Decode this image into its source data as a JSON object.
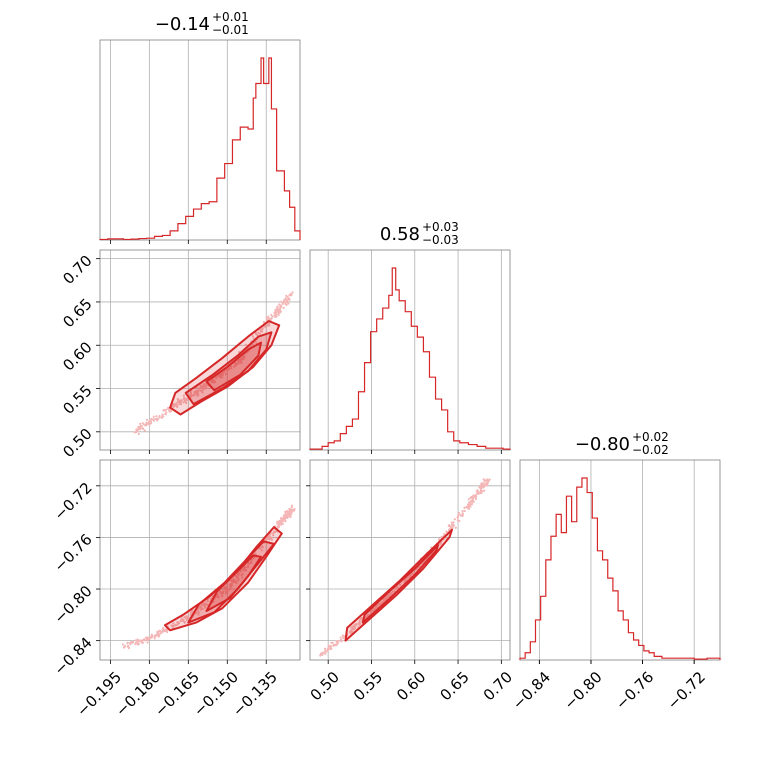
{
  "chart_data": {
    "type": "corner",
    "color": "#d62728",
    "point_color": "#f4b6b6",
    "grid": true,
    "parameters": [
      {
        "title": {
          "value": "−0.14",
          "plus": "+0.01",
          "minus": "−0.01"
        },
        "range": [
          -0.199,
          -0.122
        ],
        "ticks": [
          -0.195,
          -0.18,
          -0.165,
          -0.15,
          -0.135
        ],
        "tick_labels": [
          "−0.195",
          "−0.180",
          "−0.165",
          "−0.150",
          "−0.135"
        ]
      },
      {
        "title": {
          "value": "0.58",
          "plus": "+0.03",
          "minus": "−0.03"
        },
        "range": [
          0.479,
          0.71
        ],
        "ticks": [
          0.5,
          0.55,
          0.6,
          0.65,
          0.7
        ],
        "tick_labels": [
          "0.50",
          "0.55",
          "0.60",
          "0.65",
          "0.70"
        ]
      },
      {
        "title": {
          "value": "−0.80",
          "plus": "+0.02",
          "minus": "−0.02"
        },
        "range": [
          -0.855,
          -0.7
        ],
        "ticks": [
          -0.84,
          -0.8,
          -0.76,
          -0.72
        ],
        "tick_labels": [
          "−0.84",
          "−0.80",
          "−0.76",
          "−0.72"
        ]
      }
    ],
    "histograms": [
      {
        "bins": [
          [
            -0.199,
            -0.196,
            0.003
          ],
          [
            -0.196,
            -0.193,
            0.006
          ],
          [
            -0.193,
            -0.19,
            0.006
          ],
          [
            -0.19,
            -0.187,
            0.003
          ],
          [
            -0.187,
            -0.184,
            0.005
          ],
          [
            -0.184,
            -0.181,
            0.008
          ],
          [
            -0.181,
            -0.178,
            0.01
          ],
          [
            -0.178,
            -0.175,
            0.02
          ],
          [
            -0.175,
            -0.172,
            0.025
          ],
          [
            -0.172,
            -0.169,
            0.05
          ],
          [
            -0.169,
            -0.166,
            0.09
          ],
          [
            -0.166,
            -0.163,
            0.13
          ],
          [
            -0.163,
            -0.16,
            0.17
          ],
          [
            -0.16,
            -0.157,
            0.2
          ],
          [
            -0.157,
            -0.154,
            0.21
          ],
          [
            -0.154,
            -0.151,
            0.34
          ],
          [
            -0.151,
            -0.148,
            0.42
          ],
          [
            -0.148,
            -0.145,
            0.55
          ],
          [
            -0.145,
            -0.142,
            0.62
          ],
          [
            -0.142,
            -0.14,
            0.61
          ],
          [
            -0.14,
            -0.139,
            0.78
          ],
          [
            -0.139,
            -0.137,
            0.86
          ],
          [
            -0.137,
            -0.136,
            1.0
          ],
          [
            -0.136,
            -0.134,
            0.86
          ],
          [
            -0.134,
            -0.133,
            1.0
          ],
          [
            -0.133,
            -0.131,
            0.72
          ],
          [
            -0.131,
            -0.128,
            0.38
          ],
          [
            -0.128,
            -0.126,
            0.27
          ],
          [
            -0.126,
            -0.124,
            0.18
          ],
          [
            -0.124,
            -0.122,
            0.05
          ]
        ]
      },
      {
        "bins": [
          [
            0.479,
            0.486,
            0.005
          ],
          [
            0.486,
            0.493,
            0.005
          ],
          [
            0.493,
            0.5,
            0.02
          ],
          [
            0.5,
            0.507,
            0.04
          ],
          [
            0.507,
            0.514,
            0.05
          ],
          [
            0.514,
            0.521,
            0.09
          ],
          [
            0.521,
            0.528,
            0.13
          ],
          [
            0.528,
            0.535,
            0.17
          ],
          [
            0.535,
            0.542,
            0.32
          ],
          [
            0.542,
            0.549,
            0.48
          ],
          [
            0.549,
            0.556,
            0.65
          ],
          [
            0.556,
            0.563,
            0.72
          ],
          [
            0.563,
            0.57,
            0.78
          ],
          [
            0.57,
            0.574,
            0.85
          ],
          [
            0.574,
            0.578,
            1.0
          ],
          [
            0.578,
            0.582,
            0.88
          ],
          [
            0.582,
            0.589,
            0.82
          ],
          [
            0.589,
            0.596,
            0.76
          ],
          [
            0.596,
            0.603,
            0.68
          ],
          [
            0.603,
            0.61,
            0.62
          ],
          [
            0.61,
            0.617,
            0.54
          ],
          [
            0.617,
            0.624,
            0.4
          ],
          [
            0.624,
            0.631,
            0.28
          ],
          [
            0.631,
            0.638,
            0.22
          ],
          [
            0.638,
            0.645,
            0.1
          ],
          [
            0.645,
            0.652,
            0.05
          ],
          [
            0.652,
            0.662,
            0.04
          ],
          [
            0.662,
            0.672,
            0.03
          ],
          [
            0.672,
            0.682,
            0.02
          ],
          [
            0.682,
            0.692,
            0.01
          ],
          [
            0.692,
            0.702,
            0.01
          ],
          [
            0.702,
            0.71,
            0.005
          ]
        ]
      },
      {
        "bins": [
          [
            -0.855,
            -0.851,
            0.01
          ],
          [
            -0.851,
            -0.847,
            0.04
          ],
          [
            -0.847,
            -0.843,
            0.1
          ],
          [
            -0.843,
            -0.839,
            0.22
          ],
          [
            -0.839,
            -0.835,
            0.35
          ],
          [
            -0.835,
            -0.831,
            0.55
          ],
          [
            -0.831,
            -0.827,
            0.68
          ],
          [
            -0.827,
            -0.823,
            0.8
          ],
          [
            -0.823,
            -0.819,
            0.7
          ],
          [
            -0.819,
            -0.815,
            0.9
          ],
          [
            -0.815,
            -0.811,
            0.76
          ],
          [
            -0.811,
            -0.807,
            0.95
          ],
          [
            -0.807,
            -0.803,
            1.0
          ],
          [
            -0.803,
            -0.799,
            0.92
          ],
          [
            -0.799,
            -0.795,
            0.78
          ],
          [
            -0.795,
            -0.791,
            0.6
          ],
          [
            -0.791,
            -0.787,
            0.55
          ],
          [
            -0.787,
            -0.783,
            0.45
          ],
          [
            -0.783,
            -0.779,
            0.38
          ],
          [
            -0.779,
            -0.775,
            0.27
          ],
          [
            -0.775,
            -0.771,
            0.22
          ],
          [
            -0.771,
            -0.767,
            0.15
          ],
          [
            -0.767,
            -0.763,
            0.11
          ],
          [
            -0.763,
            -0.759,
            0.08
          ],
          [
            -0.759,
            -0.755,
            0.05
          ],
          [
            -0.755,
            -0.751,
            0.04
          ],
          [
            -0.751,
            -0.745,
            0.02
          ],
          [
            -0.745,
            -0.735,
            0.01
          ],
          [
            -0.735,
            -0.72,
            0.01
          ],
          [
            -0.72,
            -0.71,
            0.005
          ],
          [
            -0.71,
            -0.7,
            0.01
          ]
        ]
      }
    ],
    "pairs": [
      {
        "x_param": 0,
        "y_param": 1,
        "curve": [
          [
            -0.185,
            0.5
          ],
          [
            -0.175,
            0.521
          ],
          [
            -0.165,
            0.54
          ],
          [
            -0.155,
            0.56
          ],
          [
            -0.145,
            0.585
          ],
          [
            -0.135,
            0.625
          ],
          [
            -0.125,
            0.66
          ]
        ],
        "contours": [
          [
            [
              -0.168,
              0.52
            ],
            [
              -0.16,
              0.535
            ],
            [
              -0.15,
              0.552
            ],
            [
              -0.14,
              0.575
            ],
            [
              -0.133,
              0.6
            ],
            [
              -0.13,
              0.623
            ],
            [
              -0.134,
              0.628
            ],
            [
              -0.142,
              0.61
            ],
            [
              -0.152,
              0.585
            ],
            [
              -0.162,
              0.562
            ],
            [
              -0.17,
              0.545
            ],
            [
              -0.172,
              0.528
            ]
          ],
          [
            [
              -0.163,
              0.532
            ],
            [
              -0.152,
              0.55
            ],
            [
              -0.142,
              0.57
            ],
            [
              -0.135,
              0.595
            ],
            [
              -0.133,
              0.615
            ],
            [
              -0.138,
              0.61
            ],
            [
              -0.146,
              0.588
            ],
            [
              -0.156,
              0.565
            ],
            [
              -0.166,
              0.545
            ]
          ],
          [
            [
              -0.155,
              0.548
            ],
            [
              -0.145,
              0.566
            ],
            [
              -0.138,
              0.588
            ],
            [
              -0.137,
              0.603
            ],
            [
              -0.142,
              0.595
            ],
            [
              -0.15,
              0.575
            ],
            [
              -0.158,
              0.558
            ]
          ]
        ]
      },
      {
        "x_param": 0,
        "y_param": 2,
        "curve": [
          [
            -0.19,
            -0.845
          ],
          [
            -0.18,
            -0.838
          ],
          [
            -0.17,
            -0.828
          ],
          [
            -0.16,
            -0.815
          ],
          [
            -0.15,
            -0.8
          ],
          [
            -0.14,
            -0.775
          ],
          [
            -0.13,
            -0.75
          ],
          [
            -0.125,
            -0.738
          ]
        ],
        "contours": [
          [
            [
              -0.172,
              -0.832
            ],
            [
              -0.162,
              -0.826
            ],
            [
              -0.152,
              -0.815
            ],
            [
              -0.142,
              -0.795
            ],
            [
              -0.135,
              -0.775
            ],
            [
              -0.129,
              -0.757
            ],
            [
              -0.132,
              -0.752
            ],
            [
              -0.139,
              -0.768
            ],
            [
              -0.147,
              -0.788
            ],
            [
              -0.157,
              -0.806
            ],
            [
              -0.167,
              -0.82
            ],
            [
              -0.174,
              -0.828
            ]
          ],
          [
            [
              -0.165,
              -0.826
            ],
            [
              -0.155,
              -0.818
            ],
            [
              -0.146,
              -0.8
            ],
            [
              -0.138,
              -0.78
            ],
            [
              -0.132,
              -0.765
            ],
            [
              -0.136,
              -0.763
            ],
            [
              -0.143,
              -0.778
            ],
            [
              -0.151,
              -0.795
            ],
            [
              -0.161,
              -0.812
            ]
          ],
          [
            [
              -0.158,
              -0.817
            ],
            [
              -0.149,
              -0.807
            ],
            [
              -0.142,
              -0.79
            ],
            [
              -0.137,
              -0.775
            ],
            [
              -0.14,
              -0.774
            ],
            [
              -0.146,
              -0.786
            ],
            [
              -0.154,
              -0.802
            ]
          ]
        ]
      },
      {
        "x_param": 1,
        "y_param": 2,
        "curve": [
          [
            0.49,
            -0.852
          ],
          [
            0.52,
            -0.836
          ],
          [
            0.55,
            -0.818
          ],
          [
            0.58,
            -0.8
          ],
          [
            0.61,
            -0.778
          ],
          [
            0.64,
            -0.755
          ],
          [
            0.67,
            -0.728
          ],
          [
            0.685,
            -0.715
          ]
        ],
        "contours": [
          [
            [
              0.52,
              -0.84
            ],
            [
              0.55,
              -0.822
            ],
            [
              0.58,
              -0.804
            ],
            [
              0.61,
              -0.784
            ],
            [
              0.64,
              -0.76
            ],
            [
              0.643,
              -0.754
            ],
            [
              0.612,
              -0.774
            ],
            [
              0.582,
              -0.794
            ],
            [
              0.552,
              -0.812
            ],
            [
              0.522,
              -0.83
            ]
          ],
          [
            [
              0.54,
              -0.826
            ],
            [
              0.57,
              -0.808
            ],
            [
              0.6,
              -0.789
            ],
            [
              0.625,
              -0.77
            ],
            [
              0.627,
              -0.766
            ],
            [
              0.602,
              -0.783
            ],
            [
              0.572,
              -0.801
            ],
            [
              0.542,
              -0.82
            ]
          ]
        ]
      }
    ]
  }
}
